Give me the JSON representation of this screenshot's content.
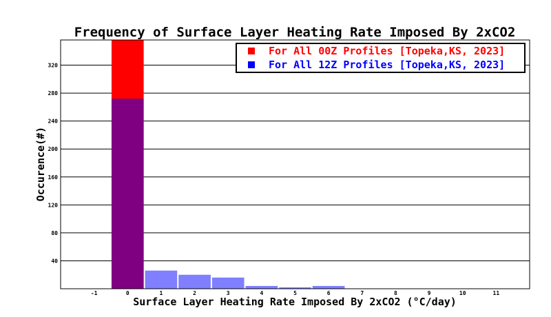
{
  "chart_data": {
    "type": "bar",
    "title": "Frequency of Surface Layer Heating Rate Imposed By 2xCO2",
    "xlabel": "Surface Layer Heating Rate Imposed By 2xCO2 (°C/day)",
    "ylabel": "Occurence(#)",
    "xlim": [
      -2,
      12
    ],
    "ylim": [
      0,
      356
    ],
    "x_ticks": [
      -1,
      0,
      1,
      2,
      3,
      4,
      5,
      6,
      7,
      8,
      9,
      10,
      11
    ],
    "y_ticks": [
      40,
      80,
      120,
      160,
      200,
      240,
      280,
      320
    ],
    "grid": true,
    "legend_position": "top-right",
    "series": [
      {
        "name": "For All 00Z Profiles [Topeka,KS, 2023]",
        "color": "#ff0000",
        "bins": [
          0
        ],
        "values": [
          356
        ]
      },
      {
        "name": "For All 12Z Profiles [Topeka,KS, 2023]",
        "color": "#0000ff",
        "bins": [
          0,
          1,
          2,
          3,
          4,
          5,
          6
        ],
        "values": [
          272,
          26,
          20,
          16,
          4,
          2,
          4
        ]
      }
    ],
    "overlap_color": "#800080",
    "series_alpha": 0.5
  }
}
